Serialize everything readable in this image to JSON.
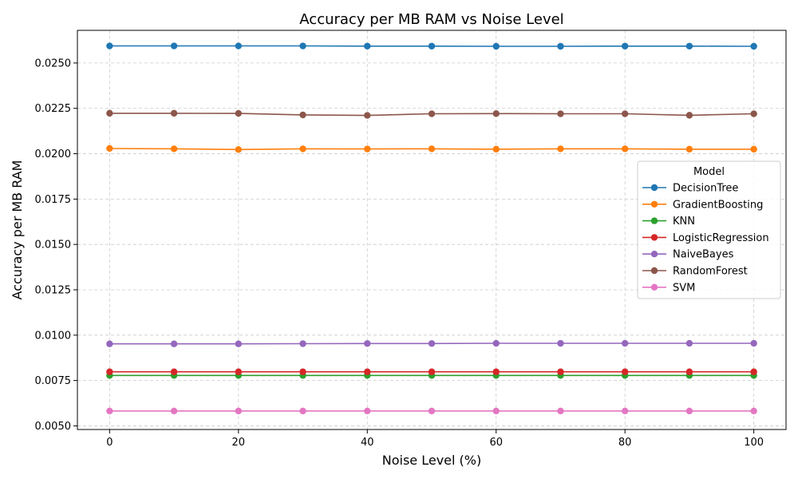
{
  "chart_data": {
    "type": "line",
    "title": "Accuracy per MB RAM vs Noise Level",
    "xlabel": "Noise Level (%)",
    "ylabel": "Accuracy per MB RAM",
    "xlim": [
      -5,
      105
    ],
    "ylim": [
      0.0048,
      0.0268
    ],
    "xticks": [
      0,
      20,
      40,
      60,
      80,
      100
    ],
    "yticks": [
      0.005,
      0.0075,
      0.01,
      0.0125,
      0.015,
      0.0175,
      0.02,
      0.0225,
      0.025
    ],
    "ytick_labels": [
      "0.0050",
      "0.0075",
      "0.0100",
      "0.0125",
      "0.0150",
      "0.0175",
      "0.0200",
      "0.0225",
      "0.0250"
    ],
    "grid": true,
    "legend_title": "Model",
    "legend_position": "center-right",
    "x": [
      0,
      10,
      20,
      30,
      40,
      50,
      60,
      70,
      80,
      90,
      100
    ],
    "series": [
      {
        "name": "DecisionTree",
        "color": "#1f77b4",
        "values": [
          0.02594,
          0.02594,
          0.02594,
          0.02594,
          0.02593,
          0.02593,
          0.02592,
          0.02592,
          0.02593,
          0.02593,
          0.02592
        ]
      },
      {
        "name": "GradientBoosting",
        "color": "#ff7f0e",
        "values": [
          0.02029,
          0.02027,
          0.02023,
          0.02027,
          0.02026,
          0.02027,
          0.02025,
          0.02027,
          0.02027,
          0.02025,
          0.02025
        ]
      },
      {
        "name": "KNN",
        "color": "#2ca02c",
        "values": [
          0.00778,
          0.00778,
          0.00778,
          0.00778,
          0.00778,
          0.00778,
          0.00778,
          0.00778,
          0.00778,
          0.00778,
          0.00778
        ]
      },
      {
        "name": "LogisticRegression",
        "color": "#d62728",
        "values": [
          0.00798,
          0.00798,
          0.00798,
          0.00798,
          0.00798,
          0.00798,
          0.00798,
          0.00798,
          0.00798,
          0.00798,
          0.00798
        ]
      },
      {
        "name": "NaiveBayes",
        "color": "#9467bd",
        "values": [
          0.00952,
          0.00952,
          0.00952,
          0.00953,
          0.00954,
          0.00954,
          0.00955,
          0.00955,
          0.00955,
          0.00955,
          0.00955
        ]
      },
      {
        "name": "RandomForest",
        "color": "#8c564b",
        "values": [
          0.02223,
          0.02223,
          0.02222,
          0.02214,
          0.02211,
          0.0222,
          0.02221,
          0.0222,
          0.0222,
          0.02212,
          0.0222
        ]
      },
      {
        "name": "SVM",
        "color": "#e377c2",
        "values": [
          0.00582,
          0.00582,
          0.00582,
          0.00582,
          0.00582,
          0.00582,
          0.00582,
          0.00582,
          0.00582,
          0.00582,
          0.00582
        ]
      }
    ]
  }
}
